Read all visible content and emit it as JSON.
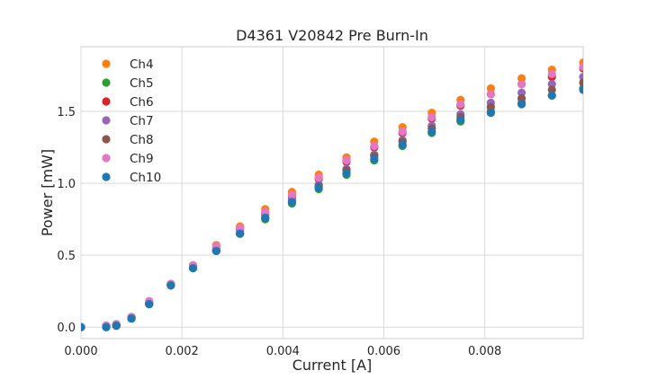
{
  "chart_data": {
    "type": "scatter",
    "title": "D4361 V20842 Pre Burn-In",
    "xlabel": "Current [A]",
    "ylabel": "Power [mW]",
    "xlim": [
      0.0,
      0.00995
    ],
    "ylim": [
      -0.08,
      1.95
    ],
    "x_ticks": [
      "0.000",
      "0.002",
      "0.004",
      "0.006",
      "0.008"
    ],
    "x_tick_values": [
      0.0,
      0.002,
      0.004,
      0.006,
      0.008
    ],
    "y_ticks": [
      "0.0",
      "0.5",
      "1.0",
      "1.5"
    ],
    "y_tick_values": [
      0.0,
      0.5,
      1.0,
      1.5
    ],
    "grid": true,
    "legend_position": "top-left",
    "x": [
      0.0,
      0.0005,
      0.0007,
      0.001,
      0.00135,
      0.00178,
      0.00222,
      0.00268,
      0.00315,
      0.00365,
      0.00418,
      0.00471,
      0.00526,
      0.00581,
      0.00637,
      0.00695,
      0.00752,
      0.00812,
      0.00873,
      0.00933,
      0.00995
    ],
    "series": [
      {
        "name": "Ch4",
        "color": "#ff7f0e",
        "values": [
          0.0,
          0.01,
          0.02,
          0.07,
          0.18,
          0.3,
          0.43,
          0.57,
          0.7,
          0.82,
          0.94,
          1.06,
          1.18,
          1.29,
          1.39,
          1.49,
          1.58,
          1.66,
          1.73,
          1.79,
          1.84
        ]
      },
      {
        "name": "Ch5",
        "color": "#2ca02c",
        "values": [
          0.0,
          0.0,
          0.01,
          0.06,
          0.16,
          0.29,
          0.41,
          0.53,
          0.65,
          0.75,
          0.86,
          0.96,
          1.06,
          1.16,
          1.26,
          1.35,
          1.43,
          1.5,
          1.56,
          1.61,
          1.66
        ]
      },
      {
        "name": "Ch6",
        "color": "#d62728",
        "values": [
          0.0,
          0.01,
          0.02,
          0.07,
          0.17,
          0.3,
          0.42,
          0.55,
          0.68,
          0.79,
          0.91,
          1.03,
          1.15,
          1.25,
          1.35,
          1.45,
          1.54,
          1.62,
          1.69,
          1.74,
          1.8
        ]
      },
      {
        "name": "Ch7",
        "color": "#9467bd",
        "values": [
          0.0,
          0.01,
          0.02,
          0.07,
          0.17,
          0.3,
          0.42,
          0.54,
          0.67,
          0.78,
          0.89,
          0.99,
          1.1,
          1.2,
          1.3,
          1.4,
          1.48,
          1.56,
          1.63,
          1.69,
          1.74
        ]
      },
      {
        "name": "Ch8",
        "color": "#8c564b",
        "values": [
          0.0,
          0.0,
          0.01,
          0.06,
          0.16,
          0.29,
          0.41,
          0.53,
          0.65,
          0.76,
          0.87,
          0.98,
          1.09,
          1.19,
          1.29,
          1.38,
          1.46,
          1.53,
          1.59,
          1.65,
          1.7
        ]
      },
      {
        "name": "Ch9",
        "color": "#e377c2",
        "values": [
          0.0,
          0.01,
          0.02,
          0.07,
          0.18,
          0.3,
          0.43,
          0.56,
          0.69,
          0.8,
          0.92,
          1.04,
          1.16,
          1.26,
          1.36,
          1.46,
          1.55,
          1.62,
          1.69,
          1.76,
          1.81
        ]
      },
      {
        "name": "Ch10",
        "color": "#1f77b4",
        "values": [
          0.0,
          0.0,
          0.01,
          0.06,
          0.16,
          0.29,
          0.41,
          0.53,
          0.65,
          0.76,
          0.87,
          0.97,
          1.07,
          1.17,
          1.27,
          1.36,
          1.44,
          1.49,
          1.55,
          1.61,
          1.65
        ]
      }
    ]
  }
}
